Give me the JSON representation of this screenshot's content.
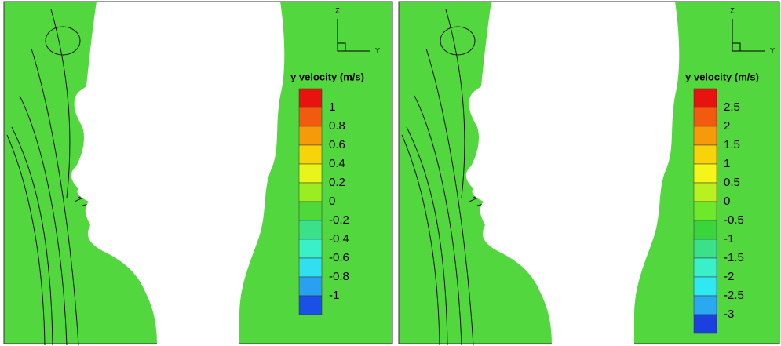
{
  "panels": [
    {
      "axis_z": "Z",
      "axis_y": "Y",
      "legend": {
        "title": "y velocity (m/s)",
        "labels": [
          "1",
          "0.8",
          "0.6",
          "0.4",
          "0.2",
          "0",
          "-0.2",
          "-0.4",
          "-0.6",
          "-0.8",
          "-1"
        ],
        "colors": [
          "#e8130e",
          "#f25a10",
          "#f79a0a",
          "#f7d30a",
          "#e8f51a",
          "#9cec22",
          "#4ed83a",
          "#3ae08a",
          "#3af0c8",
          "#30e0f0",
          "#2aa0f0",
          "#1a50e8"
        ]
      }
    },
    {
      "axis_z": "Z",
      "axis_y": "Y",
      "legend": {
        "title": "y velocity (m/s)",
        "labels": [
          "2.5",
          "2",
          "1.5",
          "1",
          "0.5",
          "0",
          "-0.5",
          "-1",
          "-1.5",
          "-2",
          "-2.5",
          "-3"
        ],
        "colors": [
          "#e8130e",
          "#f25a10",
          "#f79a0a",
          "#f7d30a",
          "#f5f51a",
          "#b8f020",
          "#6ee82a",
          "#3ad53a",
          "#3ae08a",
          "#3af0c8",
          "#30e8f0",
          "#2aa8f0",
          "#1a40e0"
        ]
      }
    }
  ]
}
